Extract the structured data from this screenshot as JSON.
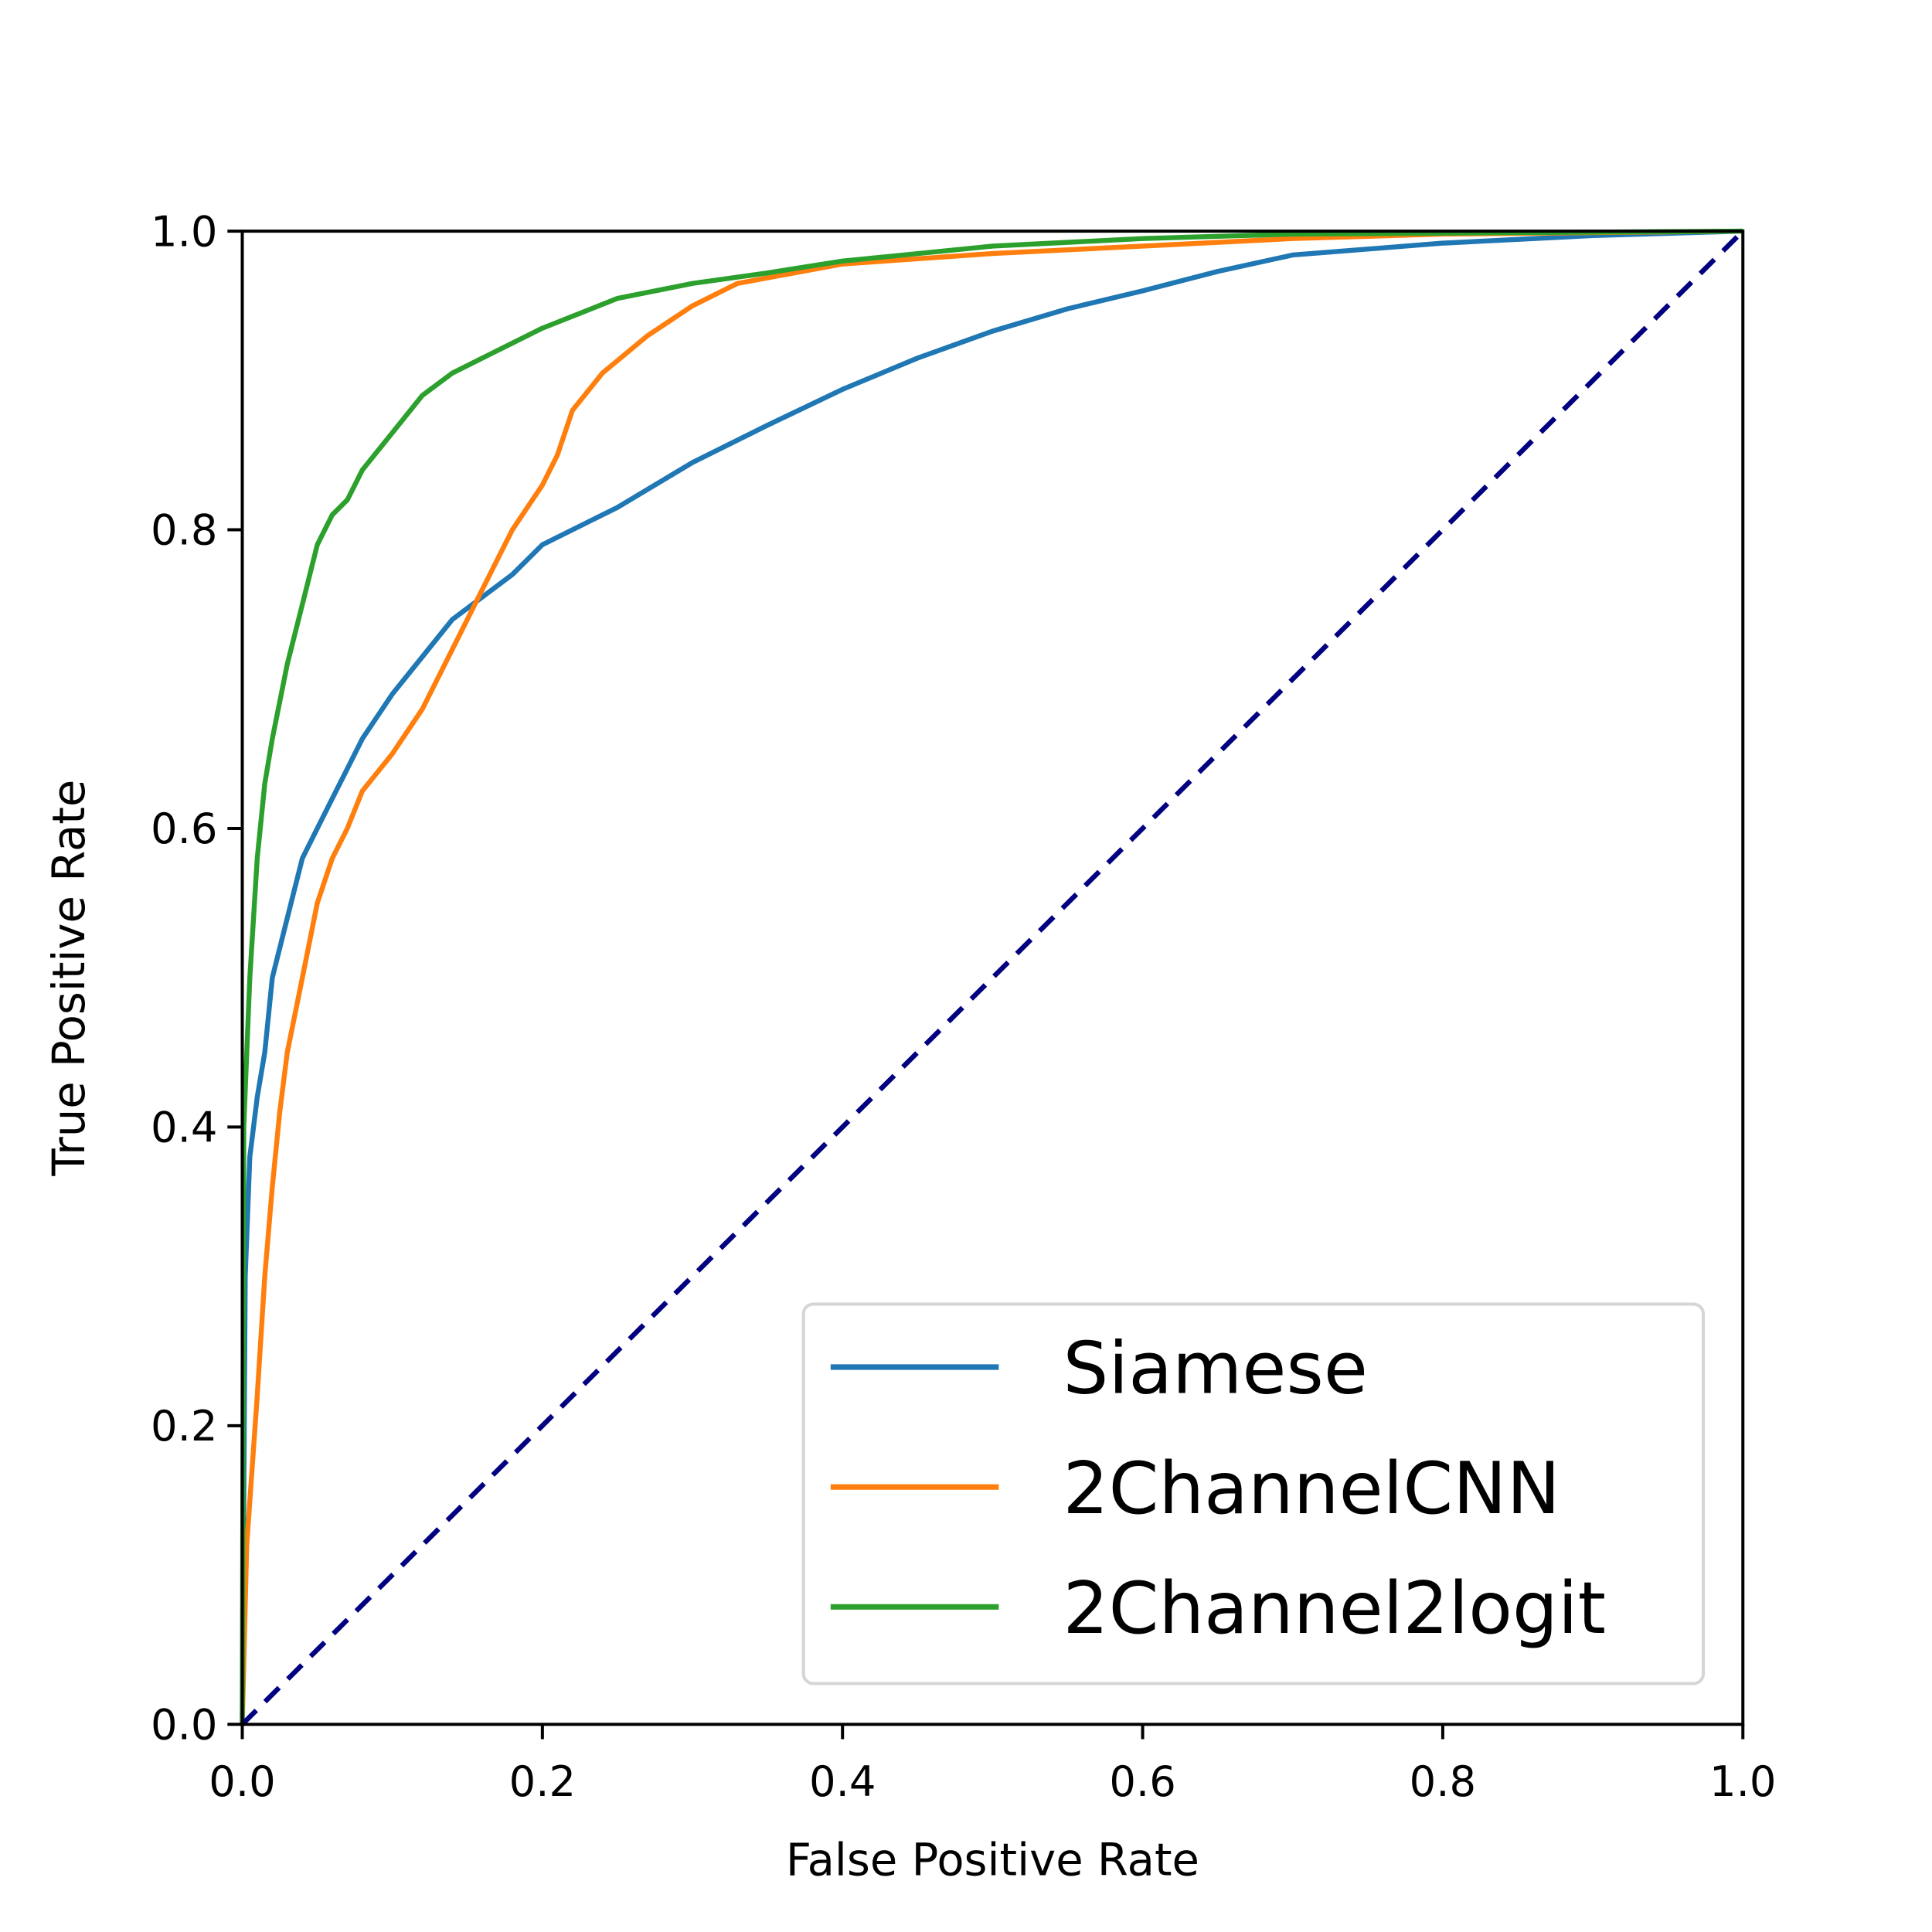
{
  "chart_data": {
    "type": "line",
    "title": "",
    "xlabel": "False Positive Rate",
    "ylabel": "True Positive Rate",
    "xlim": [
      0,
      1
    ],
    "ylim": [
      0,
      1
    ],
    "xticks": [
      "0.0",
      "0.2",
      "0.4",
      "0.6",
      "0.8",
      "1.0"
    ],
    "yticks": [
      "0.0",
      "0.2",
      "0.4",
      "0.6",
      "0.8",
      "1.0"
    ],
    "grid": false,
    "legend_position": "bottom-right",
    "series": [
      {
        "name": "Siamese",
        "color": "#1f77b4",
        "x": [
          0,
          0.002,
          0.005,
          0.01,
          0.015,
          0.02,
          0.03,
          0.04,
          0.05,
          0.06,
          0.07,
          0.08,
          0.1,
          0.12,
          0.14,
          0.16,
          0.18,
          0.2,
          0.25,
          0.3,
          0.35,
          0.4,
          0.45,
          0.5,
          0.55,
          0.6,
          0.65,
          0.7,
          0.8,
          0.9,
          1
        ],
        "y": [
          0,
          0.3,
          0.38,
          0.42,
          0.45,
          0.5,
          0.54,
          0.58,
          0.6,
          0.62,
          0.64,
          0.66,
          0.69,
          0.715,
          0.74,
          0.755,
          0.77,
          0.79,
          0.815,
          0.845,
          0.87,
          0.894,
          0.915,
          0.933,
          0.948,
          0.96,
          0.973,
          0.984,
          0.992,
          0.997,
          1
        ]
      },
      {
        "name": "2ChannelCNN",
        "color": "#ff7f0e",
        "x": [
          0,
          0.003,
          0.01,
          0.015,
          0.02,
          0.025,
          0.03,
          0.04,
          0.05,
          0.06,
          0.07,
          0.08,
          0.1,
          0.12,
          0.14,
          0.16,
          0.18,
          0.2,
          0.21,
          0.22,
          0.24,
          0.27,
          0.3,
          0.33,
          0.4,
          0.5,
          0.6,
          0.7,
          0.8,
          1
        ],
        "y": [
          0,
          0.12,
          0.22,
          0.3,
          0.36,
          0.41,
          0.45,
          0.5,
          0.55,
          0.58,
          0.6,
          0.625,
          0.65,
          0.68,
          0.72,
          0.76,
          0.8,
          0.83,
          0.85,
          0.88,
          0.905,
          0.93,
          0.95,
          0.965,
          0.978,
          0.985,
          0.99,
          0.995,
          0.998,
          1
        ]
      },
      {
        "name": "2Channel2logit",
        "color": "#2ca02c",
        "x": [
          0,
          0.001,
          0.005,
          0.01,
          0.015,
          0.02,
          0.03,
          0.04,
          0.05,
          0.06,
          0.07,
          0.08,
          0.1,
          0.12,
          0.14,
          0.16,
          0.18,
          0.2,
          0.25,
          0.3,
          0.35,
          0.4,
          0.5,
          0.6,
          0.7,
          1
        ],
        "y": [
          0,
          0.4,
          0.5,
          0.58,
          0.63,
          0.66,
          0.71,
          0.75,
          0.79,
          0.81,
          0.82,
          0.84,
          0.865,
          0.89,
          0.905,
          0.915,
          0.925,
          0.935,
          0.955,
          0.965,
          0.972,
          0.98,
          0.99,
          0.995,
          0.998,
          1
        ]
      }
    ],
    "reference_line": {
      "x": [
        0,
        1
      ],
      "y": [
        0,
        1
      ],
      "color": "#000080",
      "style": "dashed"
    }
  }
}
